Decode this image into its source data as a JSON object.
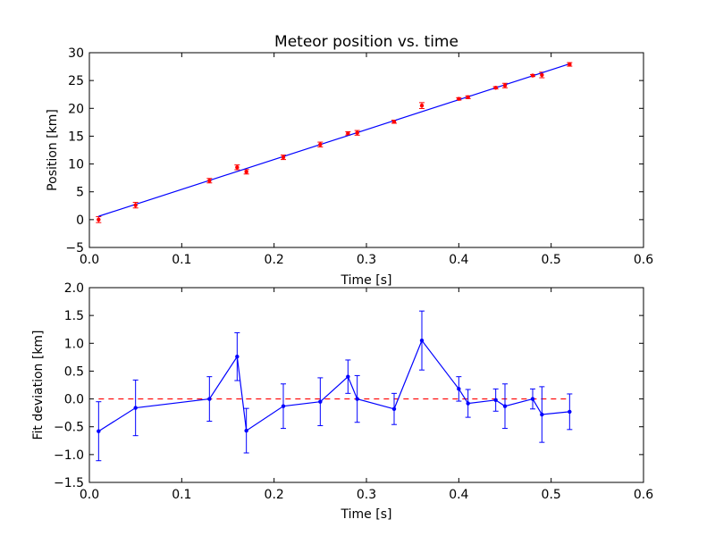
{
  "chart_data": [
    {
      "type": "line",
      "title": "Meteor position vs. time",
      "xlabel": "Time [s]",
      "ylabel": "Position [km]",
      "xlim": [
        0.0,
        0.6
      ],
      "ylim": [
        -5,
        30
      ],
      "xticks": [
        "0.0",
        "0.1",
        "0.2",
        "0.3",
        "0.4",
        "0.5",
        "0.6"
      ],
      "yticks": [
        "−5",
        "0",
        "5",
        "10",
        "15",
        "20",
        "25",
        "30"
      ],
      "grid": false,
      "legend": "none",
      "fit_line": {
        "x": [
          0.01,
          0.52
        ],
        "y": [
          0.6,
          28.0
        ],
        "color": "#0000ff"
      },
      "measurements": {
        "color": "#ff0000",
        "x": [
          0.01,
          0.05,
          0.13,
          0.16,
          0.17,
          0.21,
          0.25,
          0.28,
          0.29,
          0.33,
          0.36,
          0.4,
          0.41,
          0.44,
          0.45,
          0.48,
          0.49,
          0.52
        ],
        "y": [
          0.0,
          2.6,
          7.0,
          9.4,
          8.6,
          11.2,
          13.5,
          15.5,
          15.6,
          17.6,
          20.5,
          21.7,
          22.0,
          23.7,
          24.1,
          25.9,
          26.0,
          27.9
        ],
        "yerr": [
          0.53,
          0.5,
          0.4,
          0.43,
          0.4,
          0.4,
          0.43,
          0.3,
          0.42,
          0.28,
          0.53,
          0.22,
          0.25,
          0.2,
          0.4,
          0.18,
          0.5,
          0.32
        ]
      }
    },
    {
      "type": "line",
      "title": "",
      "xlabel": "Time [s]",
      "ylabel": "Fit deviation [km]",
      "xlim": [
        0.0,
        0.6
      ],
      "ylim": [
        -1.5,
        2.0
      ],
      "xticks": [
        "0.0",
        "0.1",
        "0.2",
        "0.3",
        "0.4",
        "0.5",
        "0.6"
      ],
      "yticks": [
        "−1.5",
        "−1.0",
        "−0.5",
        "0.0",
        "0.5",
        "1.0",
        "1.5",
        "2.0"
      ],
      "grid": false,
      "legend": "none",
      "zero_line": {
        "y": 0.0,
        "color": "#ff0000",
        "style": "dashed"
      },
      "series": [
        {
          "color": "#0000ff",
          "x": [
            0.01,
            0.05,
            0.13,
            0.16,
            0.17,
            0.21,
            0.25,
            0.28,
            0.29,
            0.33,
            0.36,
            0.4,
            0.41,
            0.44,
            0.45,
            0.48,
            0.49,
            0.52
          ],
          "y": [
            -0.58,
            -0.16,
            0.0,
            0.76,
            -0.57,
            -0.13,
            -0.05,
            0.4,
            0.0,
            -0.18,
            1.05,
            0.18,
            -0.08,
            -0.02,
            -0.13,
            0.0,
            -0.28,
            -0.23
          ],
          "yerr": [
            0.53,
            0.5,
            0.4,
            0.43,
            0.4,
            0.4,
            0.43,
            0.3,
            0.42,
            0.28,
            0.53,
            0.22,
            0.25,
            0.2,
            0.4,
            0.18,
            0.5,
            0.32
          ]
        }
      ]
    }
  ]
}
